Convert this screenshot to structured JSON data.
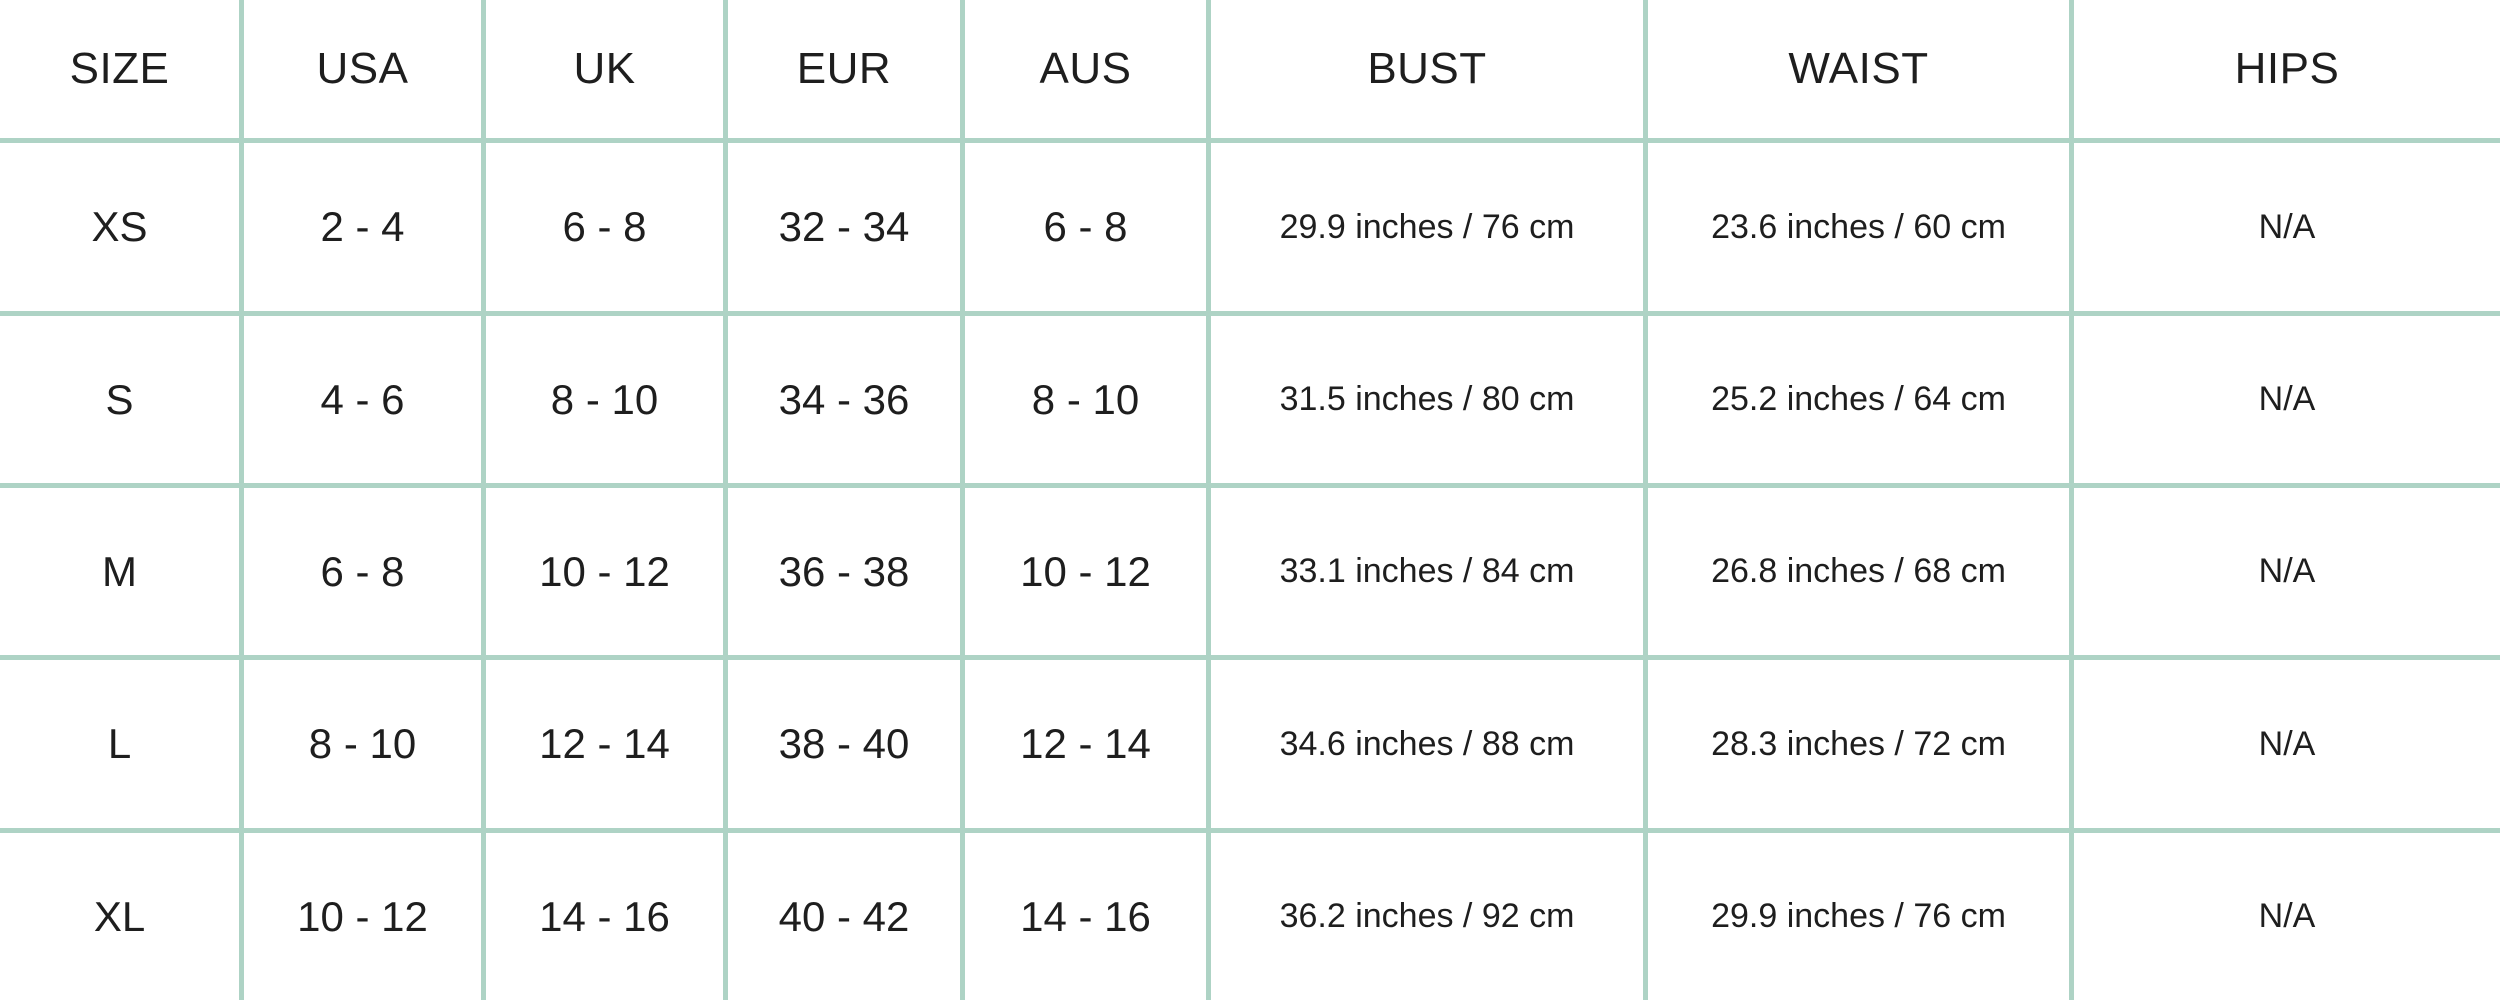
{
  "colors": {
    "border": "#aed3c5",
    "text": "#1e1e1e",
    "background": "#ffffff"
  },
  "table": {
    "columns": [
      "SIZE",
      "USA",
      "UK",
      "EUR",
      "AUS",
      "BUST",
      "WAIST",
      "HIPS"
    ],
    "rows": [
      {
        "cells": [
          "XS",
          "2 - 4",
          "6 - 8",
          "32 - 34",
          "6 - 8",
          "29.9 inches / 76 cm",
          "23.6 inches / 60 cm",
          "N/A"
        ]
      },
      {
        "cells": [
          "S",
          "4 - 6",
          "8 - 10",
          "34 - 36",
          "8 - 10",
          "31.5 inches / 80 cm",
          "25.2 inches / 64 cm",
          "N/A"
        ]
      },
      {
        "cells": [
          "M",
          "6 - 8",
          "10 - 12",
          "36 - 38",
          "10 - 12",
          "33.1 inches / 84 cm",
          "26.8 inches / 68 cm",
          "N/A"
        ]
      },
      {
        "cells": [
          "L",
          "8 - 10",
          "12 - 14",
          "38 - 40",
          "12 - 14",
          "34.6 inches / 88 cm",
          "28.3 inches / 72 cm",
          "N/A"
        ]
      },
      {
        "cells": [
          "XL",
          "10 - 12",
          "14 - 16",
          "40 - 42",
          "14 - 16",
          "36.2 inches / 92 cm",
          "29.9 inches / 76 cm",
          "N/A"
        ]
      }
    ]
  },
  "chart_data": {
    "type": "table",
    "columns": [
      "SIZE",
      "USA",
      "UK",
      "EUR",
      "AUS",
      "BUST",
      "WAIST",
      "HIPS"
    ],
    "rows": [
      [
        "XS",
        "2 - 4",
        "6 - 8",
        "32 - 34",
        "6 - 8",
        "29.9 inches / 76 cm",
        "23.6 inches / 60 cm",
        "N/A"
      ],
      [
        "S",
        "4 - 6",
        "8 - 10",
        "34 - 36",
        "8 - 10",
        "31.5 inches / 80 cm",
        "25.2 inches / 64 cm",
        "N/A"
      ],
      [
        "M",
        "6 - 8",
        "10 - 12",
        "36 - 38",
        "10 - 12",
        "33.1 inches / 84 cm",
        "26.8 inches / 68 cm",
        "N/A"
      ],
      [
        "L",
        "8 - 10",
        "12 - 14",
        "38 - 40",
        "12 - 14",
        "34.6 inches / 88 cm",
        "28.3 inches / 72 cm",
        "N/A"
      ],
      [
        "XL",
        "10 - 12",
        "14 - 16",
        "40 - 42",
        "14 - 16",
        "36.2 inches / 92 cm",
        "29.9 inches / 76 cm",
        "N/A"
      ]
    ],
    "title": "",
    "notes": "Women's garment size-conversion and body-measurement chart; grid lines sage green on white"
  }
}
